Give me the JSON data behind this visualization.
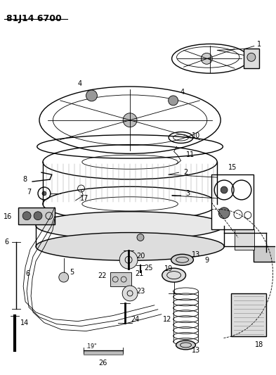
{
  "title": "81J14 6700",
  "bg_color": "#ffffff",
  "line_color": "#000000",
  "fig_width": 3.93,
  "fig_height": 5.33,
  "dpi": 100
}
